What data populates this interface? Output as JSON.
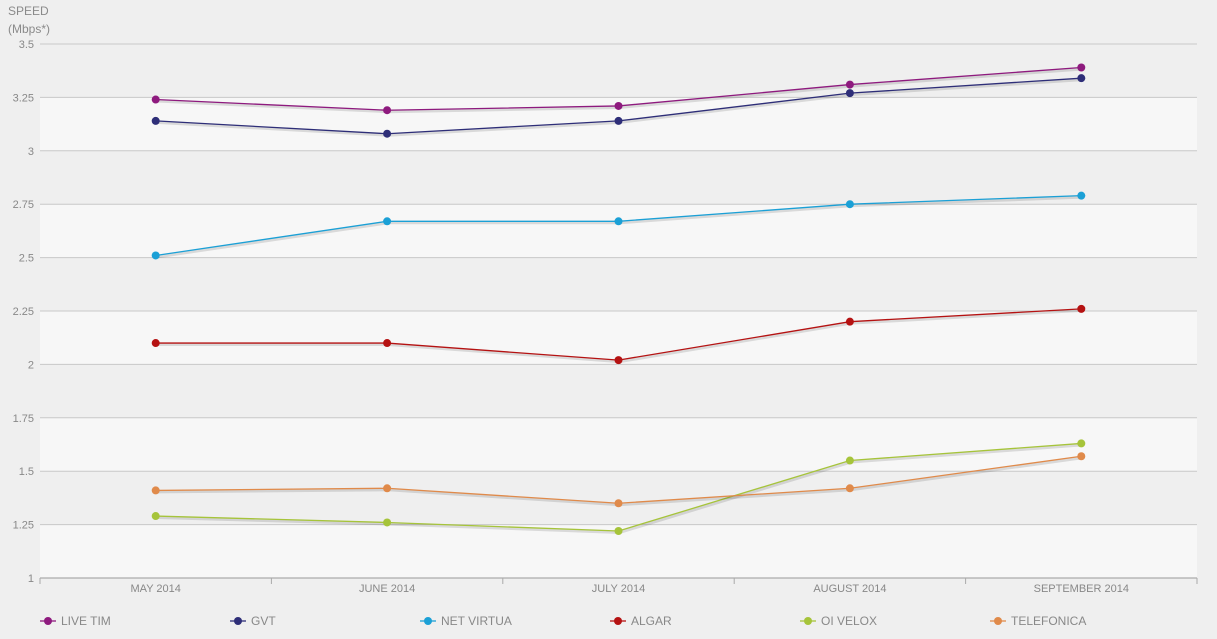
{
  "chart_data": {
    "type": "line",
    "ylabel_lines": [
      "SPEED",
      "(Mbps*)"
    ],
    "xlabel": "",
    "categories": [
      "MAY 2014",
      "JUNE 2014",
      "JULY 2014",
      "AUGUST 2014",
      "SEPTEMBER 2014"
    ],
    "ylim": [
      1,
      3.5
    ],
    "yticks": [
      1,
      1.25,
      1.5,
      1.75,
      2,
      2.25,
      2.5,
      2.75,
      3,
      3.25,
      3.5
    ],
    "ytick_labels": [
      "1",
      "1.25",
      "1.5",
      "1.75",
      "2",
      "2.25",
      "2.5",
      "2.75",
      "3",
      "3.25",
      "3.5"
    ],
    "grid": true,
    "legend_position": "bottom",
    "series": [
      {
        "name": "LIVE TIM",
        "color": "#8e1a7e",
        "values": [
          3.24,
          3.19,
          3.21,
          3.31,
          3.39
        ]
      },
      {
        "name": "GVT",
        "color": "#2e2e78",
        "values": [
          3.14,
          3.08,
          3.14,
          3.27,
          3.34
        ]
      },
      {
        "name": "NET VIRTUA",
        "color": "#1ba0d6",
        "values": [
          2.51,
          2.67,
          2.67,
          2.75,
          2.79
        ]
      },
      {
        "name": "ALGAR",
        "color": "#b51212",
        "values": [
          2.1,
          2.1,
          2.02,
          2.2,
          2.26
        ]
      },
      {
        "name": "OI VELOX",
        "color": "#a6c43a",
        "values": [
          1.29,
          1.26,
          1.22,
          1.55,
          1.63
        ]
      },
      {
        "name": "TELEFONICA",
        "color": "#e08a4a",
        "values": [
          1.41,
          1.42,
          1.35,
          1.42,
          1.57
        ]
      }
    ]
  }
}
